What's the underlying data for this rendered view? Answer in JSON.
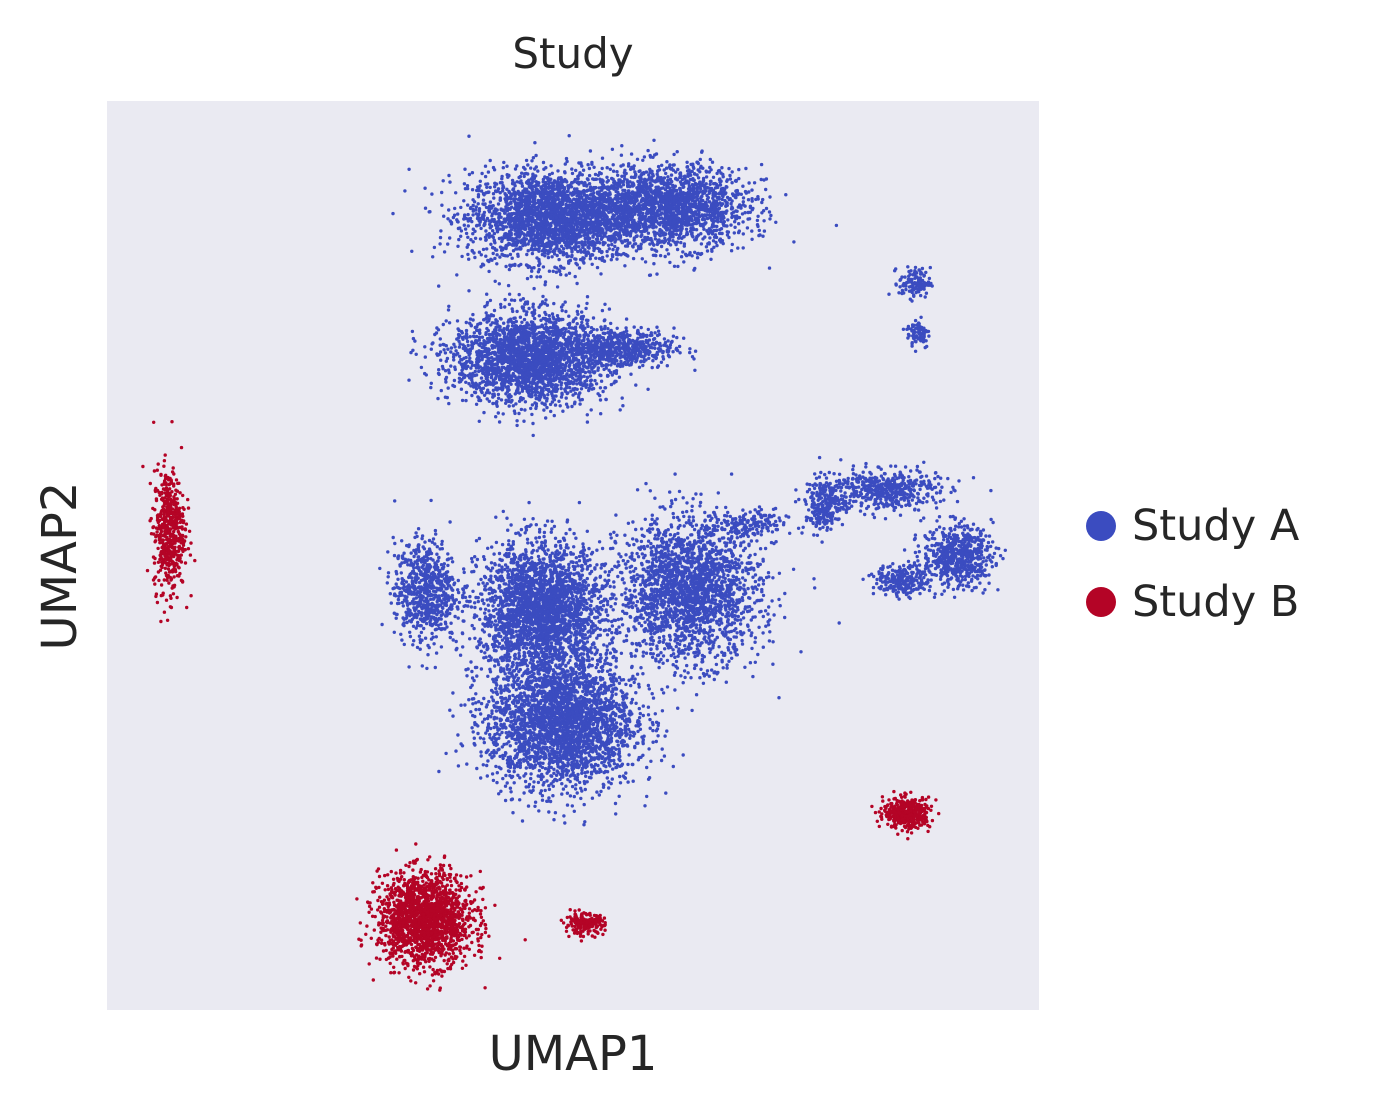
{
  "chart_data": {
    "type": "scatter",
    "title": "Study",
    "xlabel": "UMAP1",
    "ylabel": "UMAP2",
    "axis_ticks": "none",
    "grid": false,
    "background_color": "#eaeaf2",
    "legend_position": "right",
    "series": [
      {
        "name": "Study A",
        "color": "#3b4cc0",
        "clusters": [
          {
            "center": [
              -0.5,
              3.2
            ],
            "spread": [
              2.2,
              0.9
            ],
            "density": 2500
          },
          {
            "center": [
              2.5,
              3.4
            ],
            "spread": [
              2.0,
              0.8
            ],
            "density": 1800
          },
          {
            "center": [
              -1.1,
              0.4
            ],
            "spread": [
              2.0,
              0.9
            ],
            "density": 2400
          },
          {
            "center": [
              1.3,
              0.6
            ],
            "spread": [
              1.3,
              0.4
            ],
            "density": 500
          },
          {
            "center": [
              -3.8,
              -4.2
            ],
            "spread": [
              0.8,
              1.0
            ],
            "density": 700
          },
          {
            "center": [
              -0.8,
              -4.6
            ],
            "spread": [
              1.6,
              1.3
            ],
            "density": 2600
          },
          {
            "center": [
              -0.3,
              -6.8
            ],
            "spread": [
              1.9,
              1.3
            ],
            "density": 2800
          },
          {
            "center": [
              3.0,
              -4.2
            ],
            "spread": [
              1.8,
              1.4
            ],
            "density": 2200
          },
          {
            "center": [
              6.5,
              -2.5
            ],
            "spread": [
              0.5,
              0.5
            ],
            "density": 250
          },
          {
            "center": [
              8.0,
              -2.2
            ],
            "spread": [
              1.4,
              0.4
            ],
            "density": 500
          },
          {
            "center": [
              9.9,
              -3.5
            ],
            "spread": [
              0.9,
              0.6
            ],
            "density": 600
          },
          {
            "center": [
              8.5,
              -4.0
            ],
            "spread": [
              0.7,
              0.3
            ],
            "density": 250
          },
          {
            "center": [
              4.5,
              -2.9
            ],
            "spread": [
              1.0,
              0.3
            ],
            "density": 150
          },
          {
            "center": [
              8.8,
              1.9
            ],
            "spread": [
              0.4,
              0.3
            ],
            "density": 120
          },
          {
            "center": [
              8.9,
              0.9
            ],
            "spread": [
              0.3,
              0.3
            ],
            "density": 80
          }
        ]
      },
      {
        "name": "Study B",
        "color": "#b40426",
        "clusters": [
          {
            "center": [
              -10.4,
              -3.0
            ],
            "spread": [
              0.4,
              1.2
            ],
            "density": 550
          },
          {
            "center": [
              -3.8,
              -10.7
            ],
            "spread": [
              1.2,
              0.9
            ],
            "density": 1800
          },
          {
            "center": [
              0.3,
              -10.8
            ],
            "spread": [
              0.5,
              0.2
            ],
            "density": 200
          },
          {
            "center": [
              8.6,
              -8.6
            ],
            "spread": [
              0.6,
              0.3
            ],
            "density": 420
          }
        ]
      }
    ]
  }
}
